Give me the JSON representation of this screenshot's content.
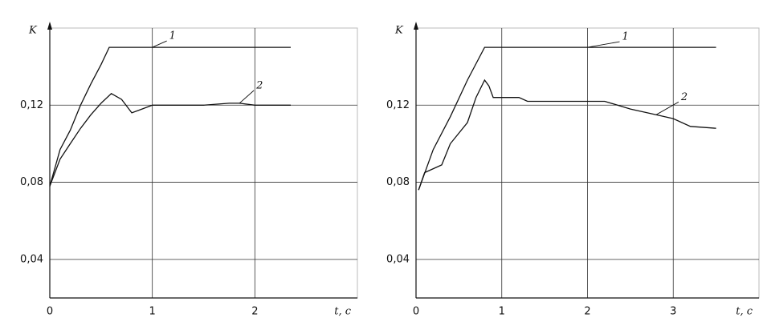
{
  "chart_data": [
    {
      "type": "line",
      "ylabel": "K",
      "xlabel": "t, c",
      "xlim": [
        0,
        3
      ],
      "xticks": [
        0,
        1,
        2
      ],
      "ylim": [
        0.02,
        0.16
      ],
      "yticks": [
        {
          "value": 0.04,
          "label": "0,04"
        },
        {
          "value": 0.08,
          "label": "0,08"
        },
        {
          "value": 0.12,
          "label": "0,12"
        }
      ],
      "grid": true,
      "series": [
        {
          "name": "1",
          "color": "#111111",
          "x": [
            0,
            0.1,
            0.2,
            0.3,
            0.4,
            0.5,
            0.58,
            1,
            1.5,
            2,
            2.35
          ],
          "values": [
            0.078,
            0.097,
            0.107,
            0.12,
            0.131,
            0.141,
            0.15,
            0.15,
            0.15,
            0.15,
            0.15
          ]
        },
        {
          "name": "2",
          "color": "#111111",
          "x": [
            0,
            0.1,
            0.2,
            0.3,
            0.4,
            0.5,
            0.6,
            0.7,
            0.8,
            0.9,
            1,
            1.5,
            1.75,
            1.85,
            2,
            2.35
          ],
          "values": [
            0.078,
            0.092,
            0.1,
            0.108,
            0.115,
            0.121,
            0.126,
            0.123,
            0.116,
            0.118,
            0.12,
            0.12,
            0.121,
            0.121,
            0.12,
            0.12
          ]
        }
      ]
    },
    {
      "type": "line",
      "ylabel": "K",
      "xlabel": "t, c",
      "xlim": [
        0,
        4
      ],
      "xticks": [
        0,
        1,
        2,
        3
      ],
      "ylim": [
        0.02,
        0.16
      ],
      "yticks": [
        {
          "value": 0.04,
          "label": "0,04"
        },
        {
          "value": 0.08,
          "label": "0,08"
        },
        {
          "value": 0.12,
          "label": "0,12"
        }
      ],
      "grid": true,
      "series": [
        {
          "name": "1",
          "color": "#111111",
          "x": [
            0.03,
            0.2,
            0.4,
            0.6,
            0.8,
            2,
            3.5
          ],
          "values": [
            0.076,
            0.097,
            0.114,
            0.133,
            0.15,
            0.15,
            0.15
          ]
        },
        {
          "name": "2",
          "color": "#111111",
          "x": [
            0.03,
            0.1,
            0.3,
            0.4,
            0.6,
            0.7,
            0.8,
            0.85,
            0.9,
            1.2,
            1.3,
            2.2,
            2.5,
            2.8,
            3.0,
            3.2,
            3.5
          ],
          "values": [
            0.076,
            0.085,
            0.089,
            0.1,
            0.111,
            0.124,
            0.133,
            0.13,
            0.124,
            0.124,
            0.122,
            0.122,
            0.118,
            0.115,
            0.113,
            0.109,
            0.108
          ]
        }
      ]
    }
  ]
}
